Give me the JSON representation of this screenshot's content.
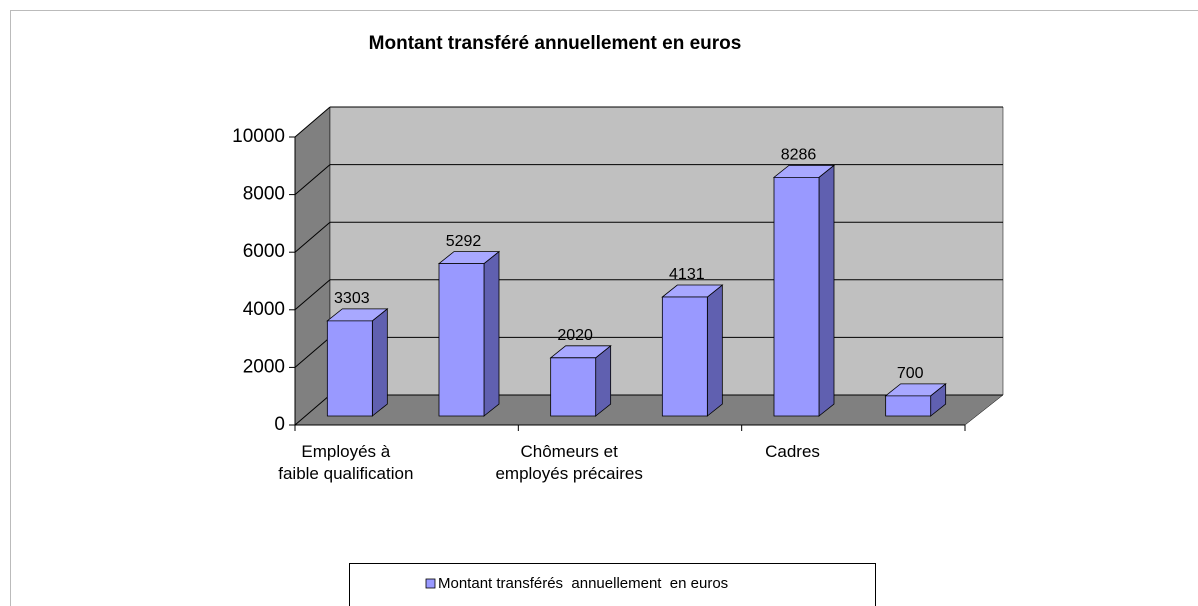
{
  "chart_data": {
    "type": "bar3d",
    "title": "Montant transféré annuellement en euros",
    "categories": [
      "Employés à faible qualification",
      null,
      "Chômeurs et employés précaires",
      null,
      "Cadres",
      null
    ],
    "series": [
      {
        "name": "Montant transférés  annuellement  en euros",
        "color": "#9999ff",
        "values": [
          3303,
          5292,
          2020,
          4131,
          8286,
          700
        ]
      }
    ],
    "ylim": [
      0,
      10000
    ],
    "yticks": [
      0,
      2000,
      4000,
      6000,
      8000,
      10000
    ],
    "grid": true,
    "legend": "bottom"
  }
}
